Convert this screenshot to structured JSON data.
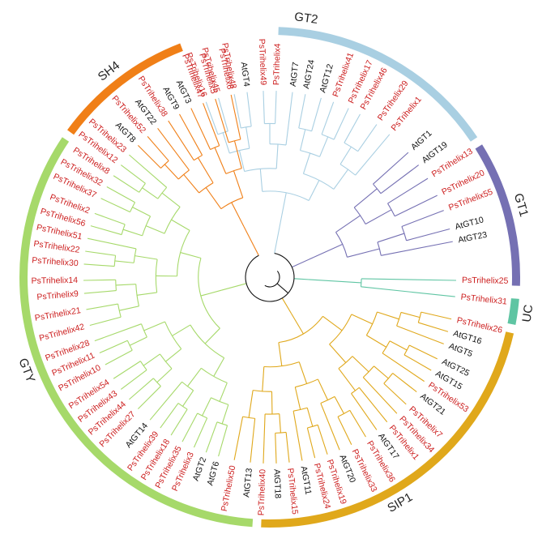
{
  "colors": {
    "ps_label": "#cc1e1e",
    "at_label": "#111111",
    "root_branch": "#111111"
  },
  "clades": [
    {
      "id": "gt2",
      "label": "GT2",
      "color": "#a9cfe2",
      "start": 2,
      "end": 56,
      "label_angle": 8
    },
    {
      "id": "gt1",
      "label": "GT1",
      "color": "#7570b3",
      "start": 58,
      "end": 92,
      "label_angle": 74
    },
    {
      "id": "uc",
      "label": "UC",
      "color": "#5fc5a3",
      "start": 95,
      "end": 101,
      "label_angle": 98
    },
    {
      "id": "sip1",
      "label": "SIP1",
      "color": "#e0a81b",
      "start": 103,
      "end": 182,
      "label_angle": 150
    },
    {
      "id": "gty",
      "label": "GTY",
      "color": "#a6d96a",
      "start": 184,
      "end": 304,
      "label_angle": 249
    },
    {
      "id": "sh4",
      "label": "SH4",
      "color": "#f07f17",
      "start": 306,
      "end": 339,
      "label_angle": 322
    }
  ],
  "leaves": [
    {
      "text": "PsTrihelix16",
      "angle": -20,
      "clade": "gt2"
    },
    {
      "text": "PsTrihelix45",
      "angle": -16,
      "clade": "gt2"
    },
    {
      "text": "PsTrihelix48",
      "angle": -11,
      "clade": "gt2"
    },
    {
      "text": "AtGT4",
      "angle": -7,
      "clade": "gt2"
    },
    {
      "text": "PsTrihelix49",
      "angle": -2,
      "clade": "gt2"
    },
    {
      "text": "PsTrihelix4",
      "angle": 2,
      "clade": "gt2"
    },
    {
      "text": "AtGT7",
      "angle": 7,
      "clade": "gt2"
    },
    {
      "text": "AtGT24",
      "angle": 11,
      "clade": "gt2"
    },
    {
      "text": "AtGT12",
      "angle": 16,
      "clade": "gt2"
    },
    {
      "text": "PsTrihelix41",
      "angle": 20,
      "clade": "gt2"
    },
    {
      "text": "PsTrihelix17",
      "angle": 25,
      "clade": "gt2"
    },
    {
      "text": "PsTrihelix46",
      "angle": 29,
      "clade": "gt2"
    },
    {
      "text": "PsTrihelix29",
      "angle": 35,
      "clade": "gt2"
    },
    {
      "text": "PsTrihelix1",
      "angle": 40,
      "clade": "gt2"
    },
    {
      "text": "AtGT1",
      "angle": 48,
      "clade": "gt1"
    },
    {
      "text": "AtGT19",
      "angle": 53,
      "clade": "gt1"
    },
    {
      "text": "PsTrihelix13",
      "angle": 58,
      "clade": "gt1"
    },
    {
      "text": "PsTrihelix20",
      "angle": 64,
      "clade": "gt1"
    },
    {
      "text": "PsTrihelix55",
      "angle": 69,
      "clade": "gt1"
    },
    {
      "text": "AtGT10",
      "angle": 75,
      "clade": "gt1"
    },
    {
      "text": "AtGT23",
      "angle": 79,
      "clade": "gt1"
    },
    {
      "text": "PsTrihelix25",
      "angle": 91,
      "clade": "uc"
    },
    {
      "text": "PsTrihelix31",
      "angle": 96,
      "clade": "uc"
    },
    {
      "text": "PsTrihelix26",
      "angle": 103,
      "clade": "sip1"
    },
    {
      "text": "AtGT16",
      "angle": 107,
      "clade": "sip1"
    },
    {
      "text": "AtGT5",
      "angle": 111,
      "clade": "sip1"
    },
    {
      "text": "AtGT25",
      "angle": 116,
      "clade": "sip1"
    },
    {
      "text": "AtGT15",
      "angle": 120,
      "clade": "sip1"
    },
    {
      "text": "PsTrihelix53",
      "angle": 124,
      "clade": "sip1"
    },
    {
      "text": "AtGT21",
      "angle": 128,
      "clade": "sip1"
    },
    {
      "text": "PsTrihelix7",
      "angle": 133,
      "clade": "sip1"
    },
    {
      "text": "PsTrihelix34",
      "angle": 137,
      "clade": "sip1"
    },
    {
      "text": "PsTrihelix1",
      "angle": 141,
      "clade": "sip1"
    },
    {
      "text": "AtGT17",
      "angle": 145,
      "clade": "sip1"
    },
    {
      "text": "PsTrihelix36",
      "angle": 149,
      "clade": "sip1"
    },
    {
      "text": "PsTrihelix33",
      "angle": 154,
      "clade": "sip1"
    },
    {
      "text": "AtGT20",
      "angle": 158,
      "clade": "sip1"
    },
    {
      "text": "PsTrihelix19",
      "angle": 162,
      "clade": "sip1"
    },
    {
      "text": "PsTrihelix24",
      "angle": 166,
      "clade": "sip1"
    },
    {
      "text": "AtGT11",
      "angle": 170,
      "clade": "sip1"
    },
    {
      "text": "PsTrihelix15",
      "angle": 174,
      "clade": "sip1"
    },
    {
      "text": "AtGT18",
      "angle": 178,
      "clade": "sip1"
    },
    {
      "text": "PsTrihelix40",
      "angle": 182,
      "clade": "sip1"
    },
    {
      "text": "AtGT13",
      "angle": 186,
      "clade": "sip1"
    },
    {
      "text": "PsTrihelix50",
      "angle": 191,
      "clade": "sip1"
    },
    {
      "text": "AtGT6",
      "angle": 196,
      "clade": "gty"
    },
    {
      "text": "AtGT2",
      "angle": 200,
      "clade": "gty"
    },
    {
      "text": "PsTrihelix3",
      "angle": 204,
      "clade": "gty"
    },
    {
      "text": "PsTrihelix35",
      "angle": 208,
      "clade": "gty"
    },
    {
      "text": "PsTrihelix18",
      "angle": 212,
      "clade": "gty"
    },
    {
      "text": "PsTrihelix39",
      "angle": 216,
      "clade": "gty"
    },
    {
      "text": "AtGT14",
      "angle": 220,
      "clade": "gty"
    },
    {
      "text": "PsTrihelix27",
      "angle": 225,
      "clade": "gty"
    },
    {
      "text": "PsTrihelix44",
      "angle": 229,
      "clade": "gty"
    },
    {
      "text": "PsTrihelix43",
      "angle": 233,
      "clade": "gty"
    },
    {
      "text": "PsTrihelix54",
      "angle": 237,
      "clade": "gty"
    },
    {
      "text": "PsTrihelix10",
      "angle": 242,
      "clade": "gty"
    },
    {
      "text": "PsTrihelix11",
      "angle": 246,
      "clade": "gty"
    },
    {
      "text": "PsTrihelix28",
      "angle": 250,
      "clade": "gty"
    },
    {
      "text": "PsTrihelix42",
      "angle": 255,
      "clade": "gty"
    },
    {
      "text": "PsTrihelix21",
      "angle": 260,
      "clade": "gty"
    },
    {
      "text": "PsTrihelix9",
      "angle": 265,
      "clade": "gty"
    },
    {
      "text": "PsTrihelix14",
      "angle": 269,
      "clade": "gty"
    },
    {
      "text": "PsTrihelix30",
      "angle": 274,
      "clade": "gty"
    },
    {
      "text": "PsTrihelix22",
      "angle": 278,
      "clade": "gty"
    },
    {
      "text": "PsTrihelix51",
      "angle": 282,
      "clade": "gty"
    },
    {
      "text": "PsTrihelix56",
      "angle": 286,
      "clade": "gty"
    },
    {
      "text": "PsTrihelix2",
      "angle": 290,
      "clade": "gty"
    },
    {
      "text": "PsTrihelix37",
      "angle": 295,
      "clade": "gty"
    },
    {
      "text": "PsTrihelix32",
      "angle": 299,
      "clade": "gty"
    },
    {
      "text": "PsTrihelix8",
      "angle": 303,
      "clade": "gty"
    },
    {
      "text": "PsTrihelix12",
      "angle": 307,
      "clade": "gty"
    },
    {
      "text": "PsTrihelix23",
      "angle": 311,
      "clade": "gty"
    },
    {
      "text": "AtGT8",
      "angle": 315,
      "clade": "sh4"
    },
    {
      "text": "PsTrihelix52",
      "angle": 319,
      "clade": "sh4"
    },
    {
      "text": "AtGT22",
      "angle": 323,
      "clade": "sh4"
    },
    {
      "text": "PsTrihelix38",
      "angle": 327,
      "clade": "sh4"
    },
    {
      "text": "AtGT9",
      "angle": 331,
      "clade": "sh4"
    },
    {
      "text": "AtGT3",
      "angle": 335,
      "clade": "sh4"
    },
    {
      "text": "PsTrihelix47",
      "angle": 339,
      "clade": "sh4"
    },
    {
      "text": "PsTrihelix5",
      "angle": 343,
      "clade": "sh4"
    },
    {
      "text": "PsTrihelix6",
      "angle": 348,
      "clade": "sh4"
    }
  ]
}
